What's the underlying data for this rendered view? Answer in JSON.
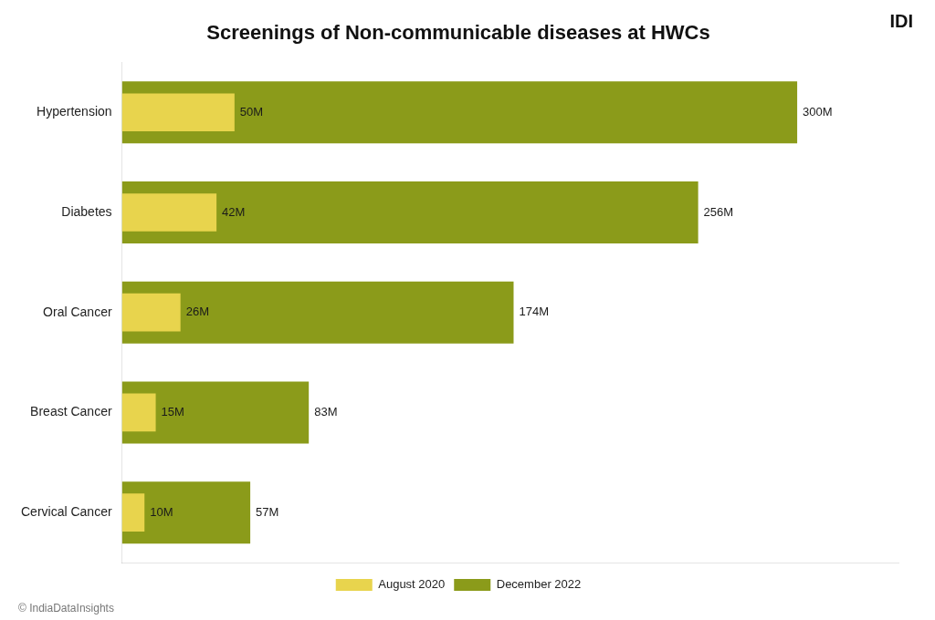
{
  "chart_data": {
    "type": "bar",
    "orientation": "horizontal",
    "title": "Screenings of Non-communicable diseases at HWCs",
    "categories": [
      "Hypertension",
      "Diabetes",
      "Oral Cancer",
      "Breast Cancer",
      "Cervical Cancer"
    ],
    "series": [
      {
        "name": "August 2020",
        "color": "#E8D44D",
        "values": [
          50,
          42,
          26,
          15,
          10
        ],
        "value_labels": [
          "50M",
          "42M",
          "26M",
          "15M",
          "10M"
        ]
      },
      {
        "name": "December 2022",
        "color": "#8B9B1A",
        "values": [
          300,
          256,
          174,
          83,
          57
        ],
        "value_labels": [
          "300M",
          "256M",
          "174M",
          "83M",
          "57M"
        ]
      }
    ],
    "xlim": [
      0,
      345
    ],
    "xticks": [],
    "tick_labels": "y",
    "grid": false,
    "legend": "bottom",
    "data_labels": true,
    "annotations": [
      "© IndiaDataInsights",
      "IDI"
    ]
  }
}
